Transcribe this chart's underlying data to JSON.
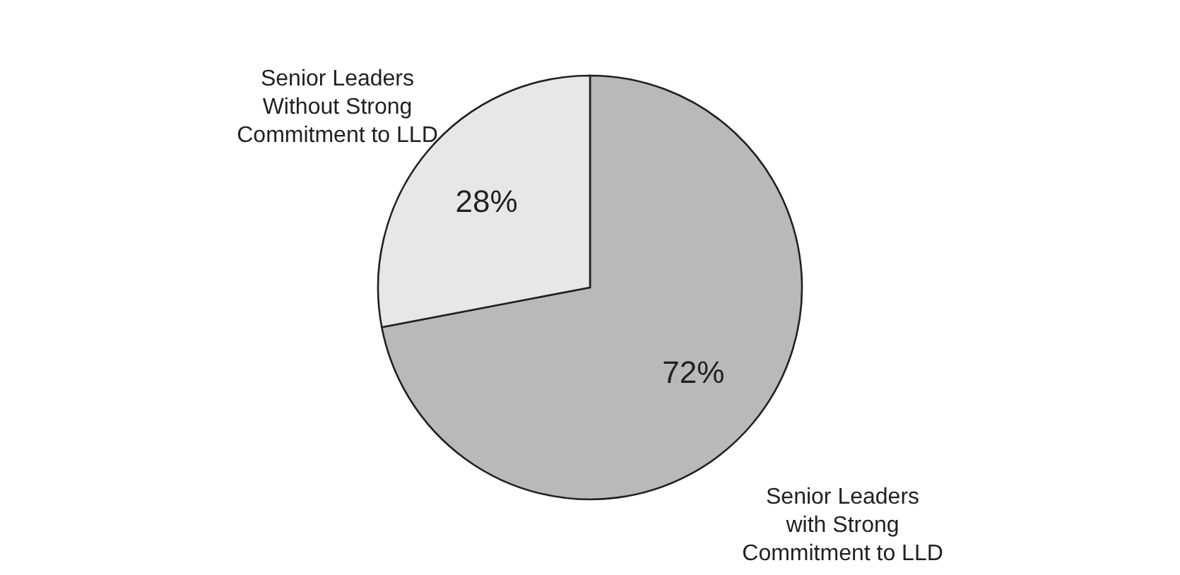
{
  "chart_data": {
    "type": "pie",
    "categories": [
      "Senior Leaders with Strong Commitment to LLD",
      "Senior Leaders Without Strong Commitment to LLD"
    ],
    "values": [
      72,
      28
    ],
    "colors": [
      "#b8b9bb",
      "#e6e7e8"
    ],
    "value_labels": [
      "72%",
      "28%"
    ]
  }
}
